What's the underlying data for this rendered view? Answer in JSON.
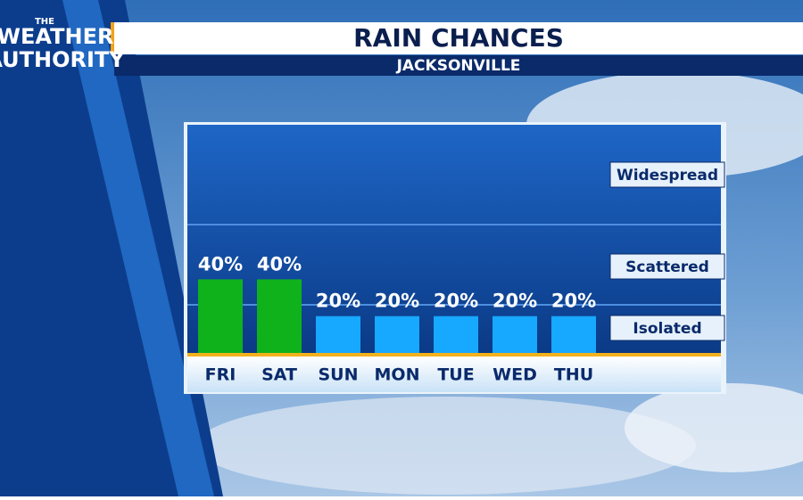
{
  "logo": {
    "line1": "THE",
    "line2": "WEATHER",
    "line3": "AUTHORITY"
  },
  "chart_data": {
    "type": "bar",
    "title": "RAIN CHANCES",
    "subtitle": "JACKSONVILLE",
    "categories": [
      "FRI",
      "SAT",
      "SUN",
      "MON",
      "TUE",
      "WED",
      "THU"
    ],
    "values": [
      40,
      40,
      20,
      20,
      20,
      20,
      20
    ],
    "value_labels": [
      "40%",
      "40%",
      "20%",
      "20%",
      "20%",
      "20%",
      "20%"
    ],
    "colors": [
      "#0fb21a",
      "#0fb21a",
      "#17a8ff",
      "#17a8ff",
      "#17a8ff",
      "#17a8ff",
      "#17a8ff"
    ],
    "ylim": [
      0,
      125
    ],
    "bands": [
      "Widespread",
      "Scattered",
      "Isolated"
    ]
  }
}
